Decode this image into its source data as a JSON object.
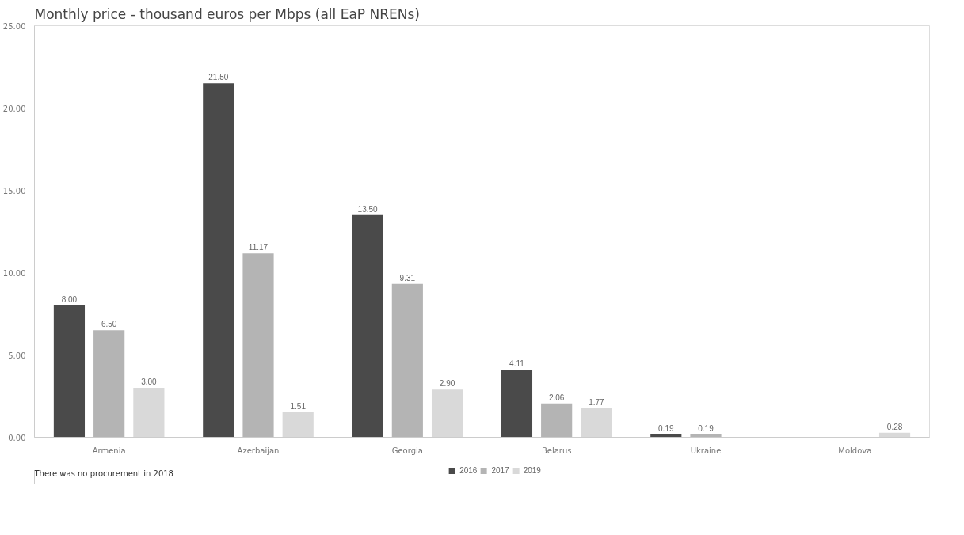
{
  "chart_data": {
    "type": "bar",
    "title": "Monthly price - thousand euros per Mbps (all EaP NRENs)",
    "categories": [
      "Armenia",
      "Azerbaijan",
      "Georgia",
      "Belarus",
      "Ukraine",
      "Moldova"
    ],
    "series": [
      {
        "name": "2016",
        "color": "#4a4a4a",
        "values": [
          8.0,
          21.5,
          13.5,
          4.11,
          0.19,
          null
        ],
        "value_labels": [
          "8.00",
          "21.50",
          "13.50",
          "4.11",
          "0.19",
          null
        ]
      },
      {
        "name": "2017",
        "color": "#b4b4b4",
        "values": [
          6.5,
          11.17,
          9.31,
          2.06,
          0.19,
          null
        ],
        "value_labels": [
          "6.50",
          "11.17",
          "9.31",
          "2.06",
          "0.19",
          null
        ]
      },
      {
        "name": "2019",
        "color": "#d9d9d9",
        "values": [
          3.0,
          1.51,
          2.9,
          1.77,
          null,
          0.28
        ],
        "value_labels": [
          "3.00",
          "1.51",
          "2.90",
          "1.77",
          null,
          "0.28"
        ]
      }
    ],
    "ylim": [
      0,
      25
    ],
    "yticks": [
      {
        "value": 0,
        "label": "0.00"
      },
      {
        "value": 5,
        "label": "5.00"
      },
      {
        "value": 10,
        "label": "10.00"
      },
      {
        "value": 15,
        "label": "15.00"
      },
      {
        "value": 20,
        "label": "20.00"
      },
      {
        "value": 25,
        "label": "25.00"
      }
    ],
    "legend": "bottom",
    "annotations": [
      "There was no procurement in 2018"
    ]
  }
}
